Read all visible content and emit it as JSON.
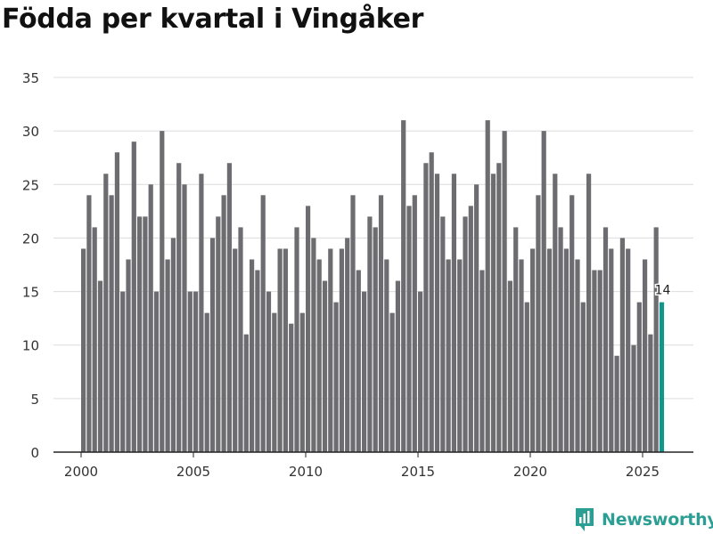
{
  "chart_data": {
    "type": "bar",
    "title": "Födda per kvartal i Vingåker",
    "xlabel": "",
    "ylabel": "",
    "ylim": [
      0,
      35
    ],
    "y_ticks": [
      0,
      5,
      10,
      15,
      20,
      25,
      30,
      35
    ],
    "x_ticks": [
      2000,
      2005,
      2010,
      2015,
      2020,
      2025
    ],
    "x_start": 2000,
    "periods_per_year": 4,
    "grid": true,
    "colors": {
      "bar": "#6d6c70",
      "highlight": "#13958a",
      "grid": "#dcdcdc",
      "axis": "#222222"
    },
    "highlight_label": "14",
    "values": [
      19,
      24,
      21,
      16,
      26,
      24,
      28,
      15,
      18,
      29,
      22,
      22,
      25,
      15,
      30,
      18,
      20,
      27,
      25,
      15,
      15,
      26,
      13,
      20,
      22,
      24,
      27,
      19,
      21,
      11,
      18,
      17,
      24,
      15,
      13,
      19,
      19,
      12,
      21,
      13,
      23,
      20,
      18,
      16,
      19,
      14,
      19,
      20,
      24,
      17,
      15,
      22,
      21,
      24,
      18,
      13,
      16,
      31,
      23,
      24,
      15,
      27,
      28,
      26,
      22,
      18,
      26,
      18,
      22,
      23,
      25,
      17,
      31,
      26,
      27,
      30,
      16,
      21,
      18,
      14,
      19,
      24,
      30,
      19,
      26,
      21,
      19,
      24,
      18,
      14,
      26,
      17,
      17,
      21,
      19,
      9,
      20,
      19,
      10,
      14,
      18,
      11,
      21,
      14
    ]
  },
  "brand": {
    "name": "Newsworthy",
    "logo_icon": "newsworthy-logo-icon"
  }
}
